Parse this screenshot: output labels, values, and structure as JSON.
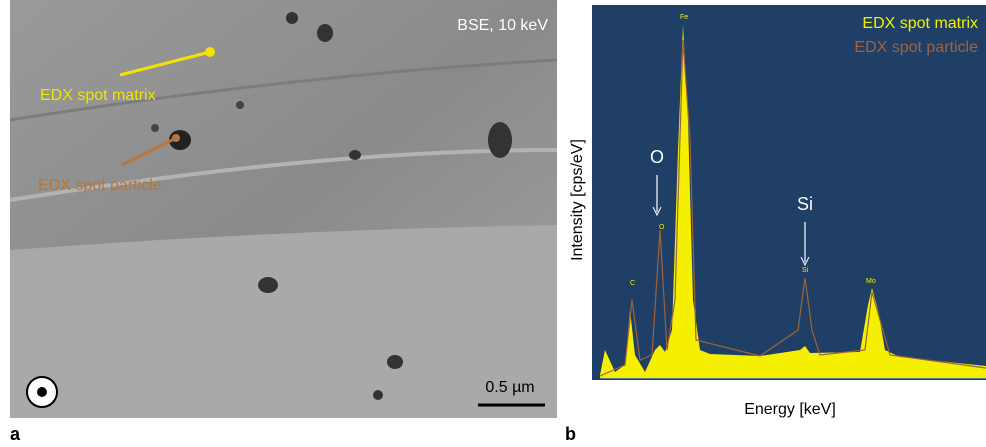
{
  "panel_a": {
    "label": "a",
    "annotations": {
      "mode": "BSE, 10 keV",
      "matrix": "EDX spot matrix",
      "particle": "EDX spot particle",
      "scale_bar": "0.5 µm"
    }
  },
  "panel_b": {
    "label": "b",
    "legend": [
      "EDX spot matrix",
      "EDX spot particle"
    ],
    "y_axis": "Intensity [cps/eV]",
    "x_axis": "Energy [keV]",
    "peak_labels": [
      "O",
      "Si"
    ],
    "element_tags": [
      "C",
      "O",
      "Fe",
      "Si",
      "Mo"
    ]
  }
}
